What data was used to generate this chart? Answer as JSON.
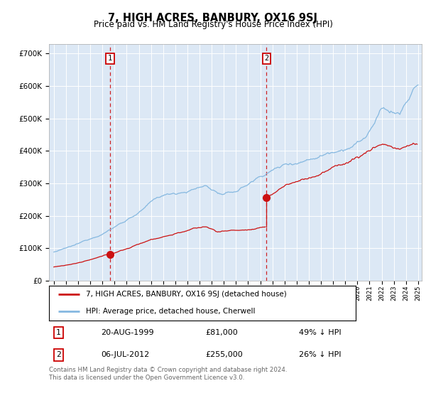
{
  "title": "7, HIGH ACRES, BANBURY, OX16 9SJ",
  "subtitle": "Price paid vs. HM Land Registry's House Price Index (HPI)",
  "legend_line1": "7, HIGH ACRES, BANBURY, OX16 9SJ (detached house)",
  "legend_line2": "HPI: Average price, detached house, Cherwell",
  "footnote": "Contains HM Land Registry data © Crown copyright and database right 2024.\nThis data is licensed under the Open Government Licence v3.0.",
  "marker1_date": "20-AUG-1999",
  "marker1_price": "£81,000",
  "marker1_hpi": "49% ↓ HPI",
  "marker1_year": 1999.64,
  "marker1_value": 81000,
  "marker2_date": "06-JUL-2012",
  "marker2_price": "£255,000",
  "marker2_hpi": "26% ↓ HPI",
  "marker2_year": 2012.51,
  "marker2_value": 255000,
  "hpi_color": "#85b8e0",
  "price_color": "#cc1111",
  "marker_box_color": "#cc0000",
  "background_color": "#dce8f5",
  "ylim": [
    0,
    730000
  ],
  "xlim_start": 1994.6,
  "xlim_end": 2025.3
}
